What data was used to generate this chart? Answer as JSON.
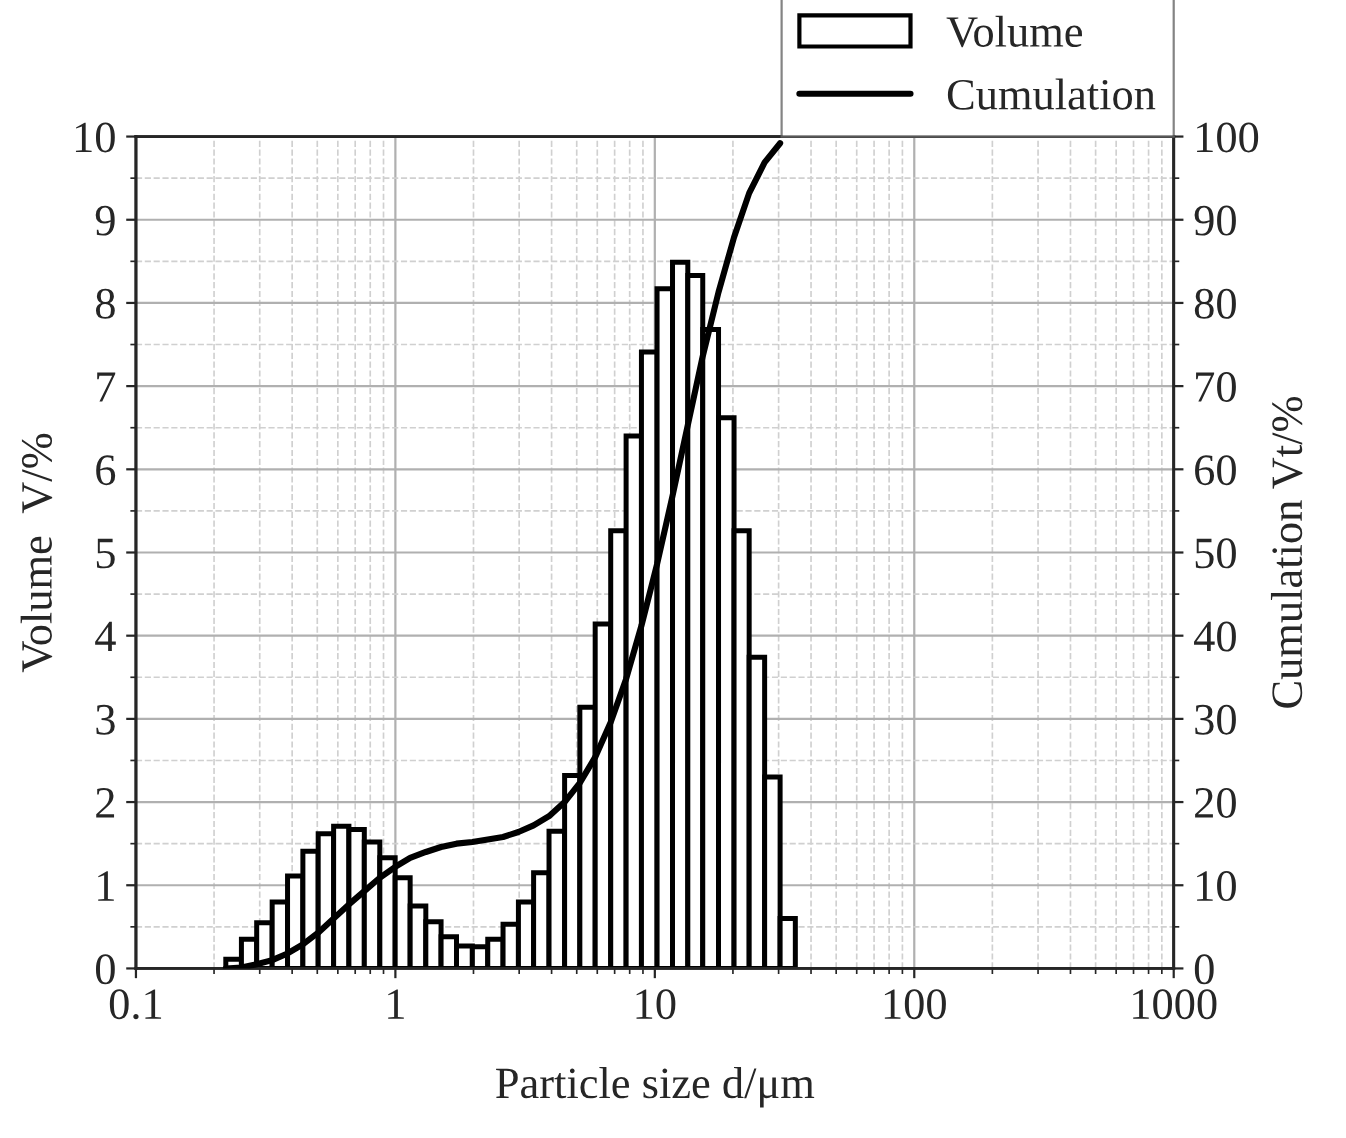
{
  "chart_data": {
    "type": "histogram",
    "xlabel": "Particle size d/μm",
    "ylabel": "Volume  V/%",
    "y2label": "Cumulation Vt/%",
    "log": "x",
    "bins": [
      0.222,
      0.255,
      0.292,
      0.335,
      0.384,
      0.44,
      0.504,
      0.578,
      0.662,
      0.759,
      0.871,
      0.998,
      1.14,
      1.31,
      1.5,
      1.72,
      1.98,
      2.27,
      2.6,
      2.98,
      3.41,
      3.91,
      4.49,
      5.14,
      5.89,
      6.76,
      7.75,
      8.88,
      10.2,
      11.7,
      13.4,
      15.3,
      17.6,
      20.2,
      23.1,
      26.5,
      30.4,
      34.8
    ],
    "series": [
      {
        "name": "Volume",
        "type": "histogram",
        "color": "#ffffff",
        "values": [
          0.11,
          0.35,
          0.55,
          0.8,
          1.11,
          1.41,
          1.62,
          1.71,
          1.67,
          1.52,
          1.33,
          1.09,
          0.75,
          0.56,
          0.38,
          0.27,
          0.26,
          0.35,
          0.53,
          0.8,
          1.15,
          1.65,
          2.32,
          3.14,
          4.14,
          5.26,
          6.4,
          7.41,
          8.17,
          8.49,
          8.33,
          7.68,
          6.62,
          5.26,
          3.74,
          2.3,
          0.6
        ]
      },
      {
        "name": "Cumulation",
        "type": "line",
        "axis": "y2",
        "color": "#000000",
        "x": [
          0.222,
          0.255,
          0.292,
          0.335,
          0.384,
          0.44,
          0.504,
          0.578,
          0.662,
          0.759,
          0.871,
          0.998,
          1.14,
          1.31,
          1.5,
          1.72,
          1.98,
          2.27,
          2.6,
          2.98,
          3.41,
          3.91,
          4.49,
          5.14,
          5.89,
          6.76,
          7.75,
          8.88,
          10.2,
          11.7,
          13.4,
          15.3,
          17.6,
          20.2,
          23.1,
          26.5,
          30.4
        ],
        "values": [
          0,
          0.1,
          0.5,
          1,
          1.8,
          2.9,
          4.3,
          6,
          7.7,
          9.3,
          10.9,
          12.2,
          13.3,
          14,
          14.6,
          15,
          15.2,
          15.5,
          15.8,
          16.4,
          17.2,
          18.3,
          20,
          22.3,
          25.4,
          29.6,
          34.8,
          41.2,
          48.6,
          56.8,
          65.3,
          73.6,
          81.3,
          87.9,
          93.2,
          96.9,
          99.2
        ]
      }
    ],
    "xlim": [
      0.1,
      1000
    ],
    "xticks": [
      0.1,
      1,
      10,
      100,
      1000
    ],
    "ylim": [
      0,
      10
    ],
    "yticks": [
      0,
      1,
      2,
      3,
      4,
      5,
      6,
      7,
      8,
      9,
      10
    ],
    "y2lim": [
      0,
      100
    ],
    "y2ticks": [
      0,
      10,
      20,
      30,
      40,
      50,
      60,
      70,
      80,
      90,
      100
    ],
    "grid": true,
    "legend": "top right",
    "line_style": "solid",
    "marker": "none"
  }
}
